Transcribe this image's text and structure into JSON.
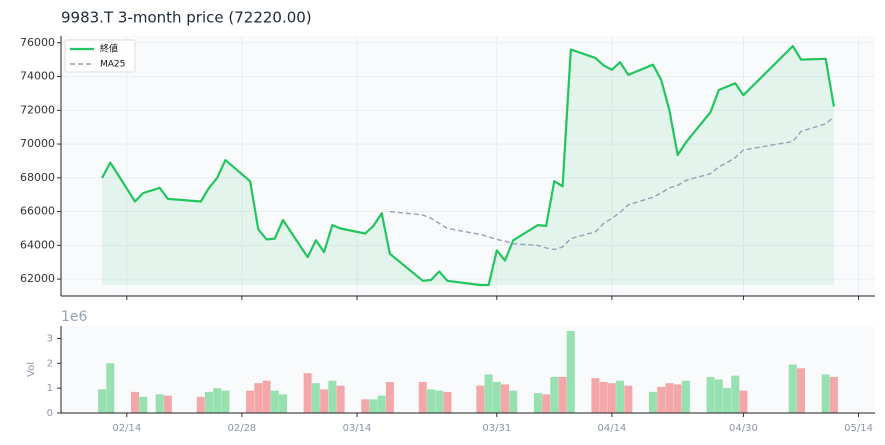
{
  "chart_data": {
    "type": "line",
    "title": "9983.T  3-month price (72220.00)",
    "x": [
      "02/11",
      "02/12",
      "02/15",
      "02/16",
      "02/18",
      "02/19",
      "02/23",
      "02/24",
      "02/25",
      "02/26",
      "03/01",
      "03/02",
      "03/03",
      "03/04",
      "03/05",
      "03/08",
      "03/09",
      "03/10",
      "03/11",
      "03/12",
      "03/15",
      "03/16",
      "03/17",
      "03/18",
      "03/22",
      "03/23",
      "03/24",
      "03/25",
      "03/29",
      "03/30",
      "03/31",
      "04/01",
      "04/02",
      "04/05",
      "04/06",
      "04/07",
      "04/08",
      "04/09",
      "04/12",
      "04/13",
      "04/14",
      "04/15",
      "04/16",
      "04/19",
      "04/20",
      "04/21",
      "04/22",
      "04/23",
      "04/26",
      "04/27",
      "04/28",
      "04/29",
      "04/30",
      "05/06",
      "05/07",
      "05/10",
      "05/11"
    ],
    "xlim": [
      "02/06",
      "05/16"
    ],
    "xticks": [
      "02/14",
      "02/28",
      "03/14",
      "03/31",
      "04/14",
      "04/30",
      "05/14"
    ],
    "ylim": [
      61000,
      76400
    ],
    "yticks": [
      62000,
      64000,
      66000,
      68000,
      70000,
      72000,
      74000,
      76000
    ],
    "grid": true,
    "legend": "upper left",
    "series": [
      {
        "name": "終値",
        "color": "#22c55e",
        "fill": true,
        "values": [
          68000,
          68900,
          66600,
          67100,
          67400,
          66750,
          66600,
          67400,
          68000,
          69050,
          67800,
          64950,
          64350,
          64400,
          65500,
          63300,
          64300,
          63600,
          65200,
          65000,
          64700,
          65150,
          65900,
          63500,
          61900,
          61950,
          62450,
          61900,
          61650,
          61650,
          63700,
          63100,
          64300,
          65200,
          65150,
          67800,
          67500,
          75600,
          75100,
          74650,
          74400,
          74850,
          74100,
          74700,
          73800,
          72000,
          69350,
          70100,
          71900,
          73200,
          73400,
          73600,
          72900,
          75800,
          75000,
          75050,
          72220
        ]
      },
      {
        "name": "MA25",
        "color": "#94a3b8",
        "dash": true,
        "values": [
          null,
          null,
          null,
          null,
          null,
          null,
          null,
          null,
          null,
          null,
          null,
          null,
          null,
          null,
          null,
          null,
          null,
          null,
          null,
          null,
          null,
          null,
          null,
          66000,
          65800,
          65600,
          65300,
          65000,
          64650,
          64500,
          64350,
          64250,
          64100,
          64000,
          63850,
          63750,
          63900,
          64400,
          64800,
          65300,
          65600,
          65950,
          66400,
          66850,
          67100,
          67400,
          67550,
          67850,
          68250,
          68650,
          68900,
          69200,
          69650,
          70150,
          70750,
          71200,
          71600
        ]
      }
    ],
    "volume": {
      "ylabel": "Vol",
      "offset_label": "1e6",
      "ylim": [
        0,
        3.5
      ],
      "yticks": [
        0,
        1,
        2,
        3
      ],
      "up_color": "#97e0b0",
      "down_color": "#f4a7a8",
      "values": [
        0.95,
        2.0,
        0.85,
        0.65,
        0.75,
        0.7,
        0.65,
        0.85,
        1.0,
        0.9,
        0.9,
        1.2,
        1.3,
        0.9,
        0.75,
        1.6,
        1.2,
        0.95,
        1.3,
        1.1,
        0.55,
        0.55,
        0.7,
        1.25,
        1.25,
        0.95,
        0.9,
        0.85,
        1.1,
        1.55,
        1.25,
        1.15,
        0.9,
        0.8,
        0.75,
        1.45,
        1.45,
        3.3,
        1.4,
        1.25,
        1.2,
        1.3,
        1.1,
        0.85,
        1.05,
        1.2,
        1.15,
        1.3,
        1.45,
        1.35,
        1.0,
        1.5,
        0.9,
        1.95,
        1.8,
        1.55,
        1.45
      ]
    }
  }
}
